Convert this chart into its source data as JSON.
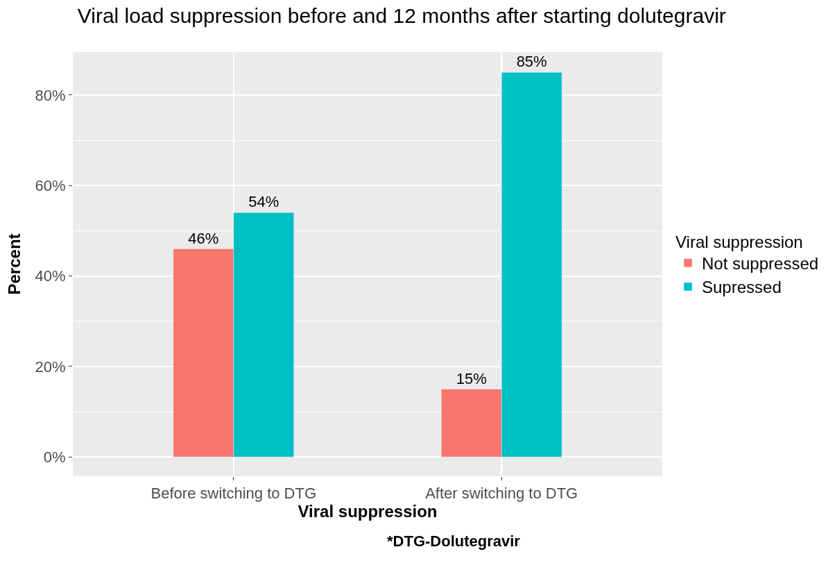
{
  "chart_data": {
    "type": "bar",
    "title": "Viral load suppression before and 12 months after starting dolutegravir",
    "xlabel": "Viral suppression",
    "ylabel": "Percent",
    "legend_title": "Viral suppression",
    "categories": [
      "Before switching to DTG",
      "After switching to DTG"
    ],
    "series": [
      {
        "name": "Not suppressed",
        "color": "#f8766d",
        "values": [
          46,
          15
        ],
        "value_labels": [
          "46%",
          "15%"
        ]
      },
      {
        "name": "Supressed",
        "color": "#00bfc4",
        "values": [
          54,
          85
        ],
        "value_labels": [
          "54%",
          "85%"
        ]
      }
    ],
    "ylim": [
      -4.25,
      89.5
    ],
    "yticks": [
      {
        "value": 0,
        "label": "0%"
      },
      {
        "value": 20,
        "label": "20%"
      },
      {
        "value": 40,
        "label": "40%"
      },
      {
        "value": 60,
        "label": "60%"
      },
      {
        "value": 80,
        "label": "80%"
      }
    ],
    "grid": true,
    "legend": "right",
    "annotations": [
      "*DTG-Dolutegravir"
    ]
  }
}
